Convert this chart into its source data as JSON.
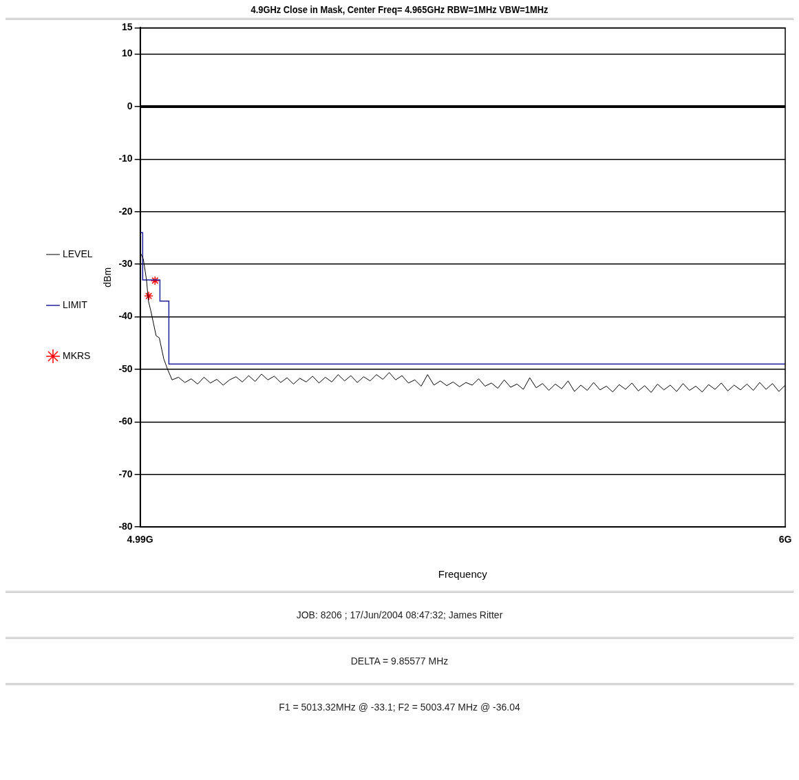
{
  "chart_data": {
    "type": "line",
    "title": "4.9GHz  Close in Mask, Center Freq= 4.965GHz RBW=1MHz VBW=1MHz",
    "xlabel": "Frequency",
    "ylabel": "dBm",
    "xlim": [
      4.99,
      6
    ],
    "xticks": [
      {
        "value": 4.99,
        "label": "4.99G"
      },
      {
        "value": 6,
        "label": "6G"
      }
    ],
    "ylim": [
      -80,
      15
    ],
    "yticks": [
      -80,
      -70,
      -60,
      -50,
      -40,
      -30,
      -20,
      -10,
      0,
      10,
      15
    ],
    "grid": "y",
    "legend": "left",
    "marker": "none",
    "line_style": "solid",
    "ref_lines": [
      {
        "axis": "y",
        "value": 0,
        "color": "#000000"
      }
    ],
    "series": [
      {
        "name": "LEVEL",
        "type": "line",
        "color": "#000000",
        "x": [
          4.99,
          4.995,
          5.0,
          5.003,
          5.007,
          5.015,
          5.02,
          5.027,
          5.033,
          5.04,
          5.05,
          5.06,
          5.07,
          5.08,
          5.09,
          5.1,
          5.11,
          5.12,
          5.13,
          5.14,
          5.15,
          5.16,
          5.17,
          5.18,
          5.19,
          5.2,
          5.21,
          5.22,
          5.23,
          5.24,
          5.25,
          5.26,
          5.27,
          5.28,
          5.29,
          5.3,
          5.31,
          5.32,
          5.33,
          5.34,
          5.35,
          5.36,
          5.37,
          5.38,
          5.39,
          5.4,
          5.41,
          5.42,
          5.43,
          5.44,
          5.45,
          5.46,
          5.47,
          5.48,
          5.49,
          5.5,
          5.51,
          5.52,
          5.53,
          5.54,
          5.55,
          5.56,
          5.57,
          5.58,
          5.59,
          5.6,
          5.61,
          5.62,
          5.63,
          5.64,
          5.65,
          5.66,
          5.67,
          5.68,
          5.69,
          5.7,
          5.71,
          5.72,
          5.73,
          5.74,
          5.75,
          5.76,
          5.77,
          5.78,
          5.79,
          5.8,
          5.81,
          5.82,
          5.83,
          5.84,
          5.85,
          5.86,
          5.87,
          5.88,
          5.89,
          5.9,
          5.91,
          5.92,
          5.93,
          5.94,
          5.95,
          5.96,
          5.97,
          5.98,
          5.99,
          6.0
        ],
        "values": [
          -27.7,
          -29,
          -33,
          -37,
          -39,
          -43.6,
          -44,
          -48,
          -50,
          -52,
          -51.5,
          -52.5,
          -51.8,
          -52.8,
          -51.5,
          -52.6,
          -51.9,
          -53,
          -52,
          -51.4,
          -52.4,
          -51.2,
          -52.3,
          -50.9,
          -52,
          -51.3,
          -52.5,
          -51.6,
          -52.8,
          -51.7,
          -52.4,
          -51.3,
          -52.6,
          -51.5,
          -52.4,
          -51,
          -52.2,
          -51.2,
          -52.5,
          -51.4,
          -52.2,
          -51,
          -51.9,
          -50.6,
          -52,
          -51.2,
          -52.6,
          -52,
          -53.2,
          -51,
          -53,
          -52.2,
          -53.1,
          -52.4,
          -53.3,
          -52.5,
          -53,
          -51.8,
          -53.2,
          -52.6,
          -53.6,
          -52,
          -53.4,
          -52.8,
          -53.8,
          -51.6,
          -53.5,
          -52.7,
          -54,
          -52.8,
          -53.7,
          -52.2,
          -54.2,
          -53,
          -54,
          -52.5,
          -53.9,
          -53.2,
          -54.3,
          -52.9,
          -53.8,
          -52.6,
          -54.1,
          -53.1,
          -54.4,
          -52.8,
          -53.9,
          -53,
          -54.2,
          -52.7,
          -54,
          -53.2,
          -54.3,
          -52.9,
          -53.8,
          -52.6,
          -54.1,
          -53,
          -53.9,
          -52.8,
          -54,
          -52.5,
          -53.8,
          -52.7,
          -54.2,
          -53
        ]
      },
      {
        "name": "LIMIT",
        "type": "step",
        "color": "#1f1f9e",
        "x": [
          4.99,
          4.994,
          5.021,
          5.035,
          6
        ],
        "values": [
          -24,
          -33,
          -37,
          -49,
          -49
        ]
      },
      {
        "name": "MKRS",
        "type": "scatter",
        "color": "#ff0000",
        "marker": "cross",
        "x": [
          5.01332,
          5.00347
        ],
        "values": [
          -33.1,
          -36.04
        ]
      }
    ],
    "annotations": [
      "JOB: 8206  ;  17/Jun/2004 08:47:32; James Ritter",
      "DELTA = 9.85577 MHz",
      "F1 = 5013.32MHz @ -33.1;  F2 = 5003.47 MHz @ -36.04"
    ]
  }
}
